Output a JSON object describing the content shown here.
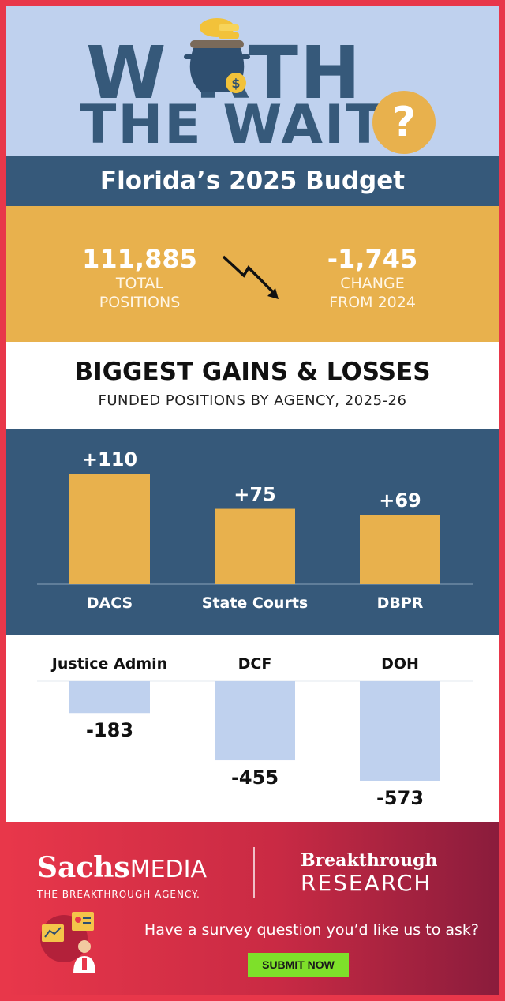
{
  "header": {
    "title_line1": "W RTH",
    "title_line2": "THE WAIT",
    "question_mark": "?",
    "icons": [
      "money-pot-icon",
      "dollar-coin-icon"
    ]
  },
  "band_title": "Florida’s 2025 Budget",
  "stats": {
    "total_positions_value": "111,885",
    "total_positions_label1": "TOTAL",
    "total_positions_label2": "POSITIONS",
    "change_value": "-1,745",
    "change_label1": "CHANGE",
    "change_label2": "FROM 2024",
    "arrow_icon": "trend-down-arrow-icon"
  },
  "colors": {
    "navy": "#36597a",
    "gold": "#e8b14d",
    "light_blue": "#bfd1ee",
    "red": "#e8374a",
    "green": "#7ee02a"
  },
  "chart_data": {
    "type": "bar",
    "title": "BIGGEST GAINS & LOSSES",
    "subtitle": "FUNDED POSITIONS BY AGENCY, 2025-26",
    "categories": [
      "DACS",
      "State Courts",
      "DBPR",
      "Justice Admin",
      "DCF",
      "DOH"
    ],
    "values": [
      110,
      75,
      69,
      -183,
      -455,
      -573
    ],
    "data_labels": [
      "+110",
      "+75",
      "+69",
      "-183",
      "-455",
      "-573"
    ],
    "grid": false,
    "legend": "none"
  },
  "footer": {
    "sachs_logo_bold": "Sachs",
    "sachs_logo_rest": "MEDIA",
    "sachs_tagline": "THE BREAKTHROUGH AGENCY.",
    "research_line1": "Breakthrough",
    "research_line2": "RESEARCH",
    "prompt": "Have a survey question you’d like us to ask?",
    "submit_label": "SUBMIT NOW",
    "illustration_icon": "survey-person-icon"
  }
}
